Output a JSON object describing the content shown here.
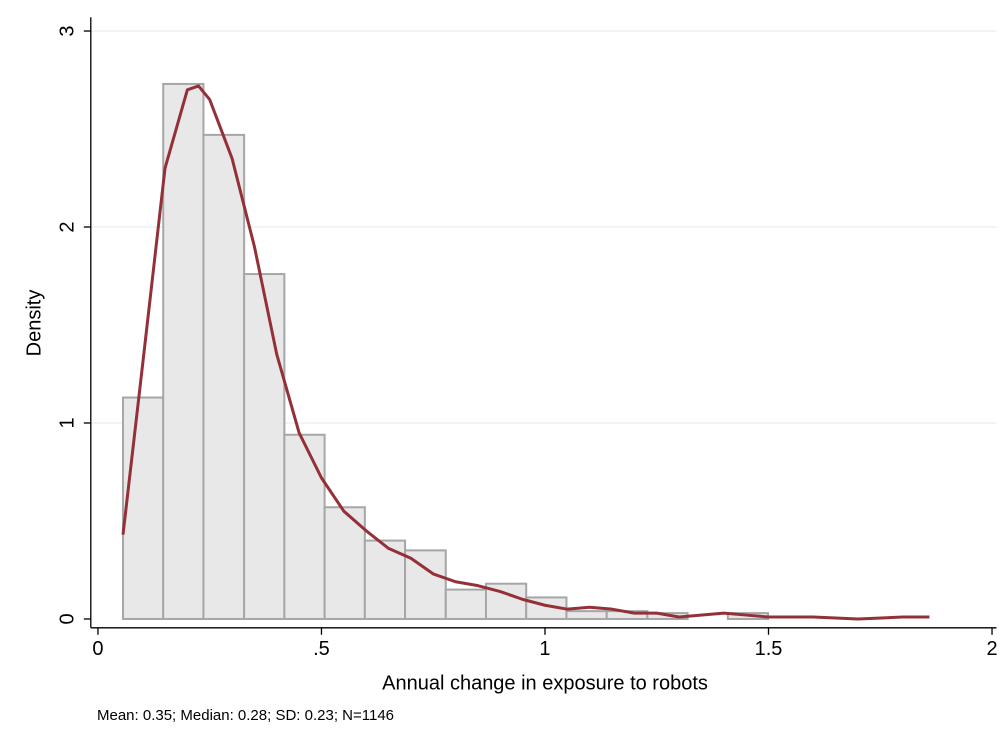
{
  "chart_data": {
    "type": "histogram",
    "xlabel": "Annual change in exposure to robots",
    "ylabel": "Density",
    "note": "Mean: 0.35; Median: 0.28; SD: 0.23; N=1146",
    "bins": [
      0.056,
      0.146,
      0.236,
      0.327,
      0.417,
      0.507,
      0.597,
      0.687,
      0.778,
      0.868,
      0.958,
      1.048,
      1.138,
      1.229,
      1.319,
      1.409,
      1.499,
      1.589,
      1.68,
      1.77,
      1.86
    ],
    "values": [
      1.13,
      2.73,
      2.47,
      1.76,
      0.94,
      0.57,
      0.4,
      0.35,
      0.15,
      0.18,
      0.11,
      0.04,
      0.04,
      0.03,
      0,
      0.03,
      0,
      0,
      0,
      0
    ],
    "color": "#e8e8e8",
    "edgecolor": "#a6a6a6",
    "density": {
      "color": "#943038",
      "x": [
        0.056,
        0.1,
        0.15,
        0.2,
        0.225,
        0.25,
        0.3,
        0.35,
        0.4,
        0.45,
        0.5,
        0.55,
        0.6,
        0.65,
        0.7,
        0.75,
        0.8,
        0.85,
        0.9,
        0.95,
        1.0,
        1.05,
        1.1,
        1.15,
        1.2,
        1.25,
        1.3,
        1.4,
        1.45,
        1.5,
        1.6,
        1.7,
        1.8,
        1.86
      ],
      "values": [
        0.43,
        1.3,
        2.3,
        2.7,
        2.72,
        2.65,
        2.35,
        1.9,
        1.35,
        0.95,
        0.72,
        0.55,
        0.45,
        0.36,
        0.31,
        0.23,
        0.19,
        0.17,
        0.14,
        0.1,
        0.07,
        0.05,
        0.06,
        0.05,
        0.03,
        0.03,
        0.01,
        0.03,
        0.02,
        0.01,
        0.01,
        0.0,
        0.01,
        0.01
      ]
    },
    "xlim": [
      -0.016,
      2.01
    ],
    "ylim": [
      -0.045,
      3.07
    ],
    "xticks": [
      0,
      {
        "value": 0.5,
        "label": ".5"
      },
      1,
      1.5,
      2
    ],
    "yticks": [
      0,
      1,
      2,
      3
    ],
    "grid": true,
    "gridcolor": "#eaf2f3"
  }
}
